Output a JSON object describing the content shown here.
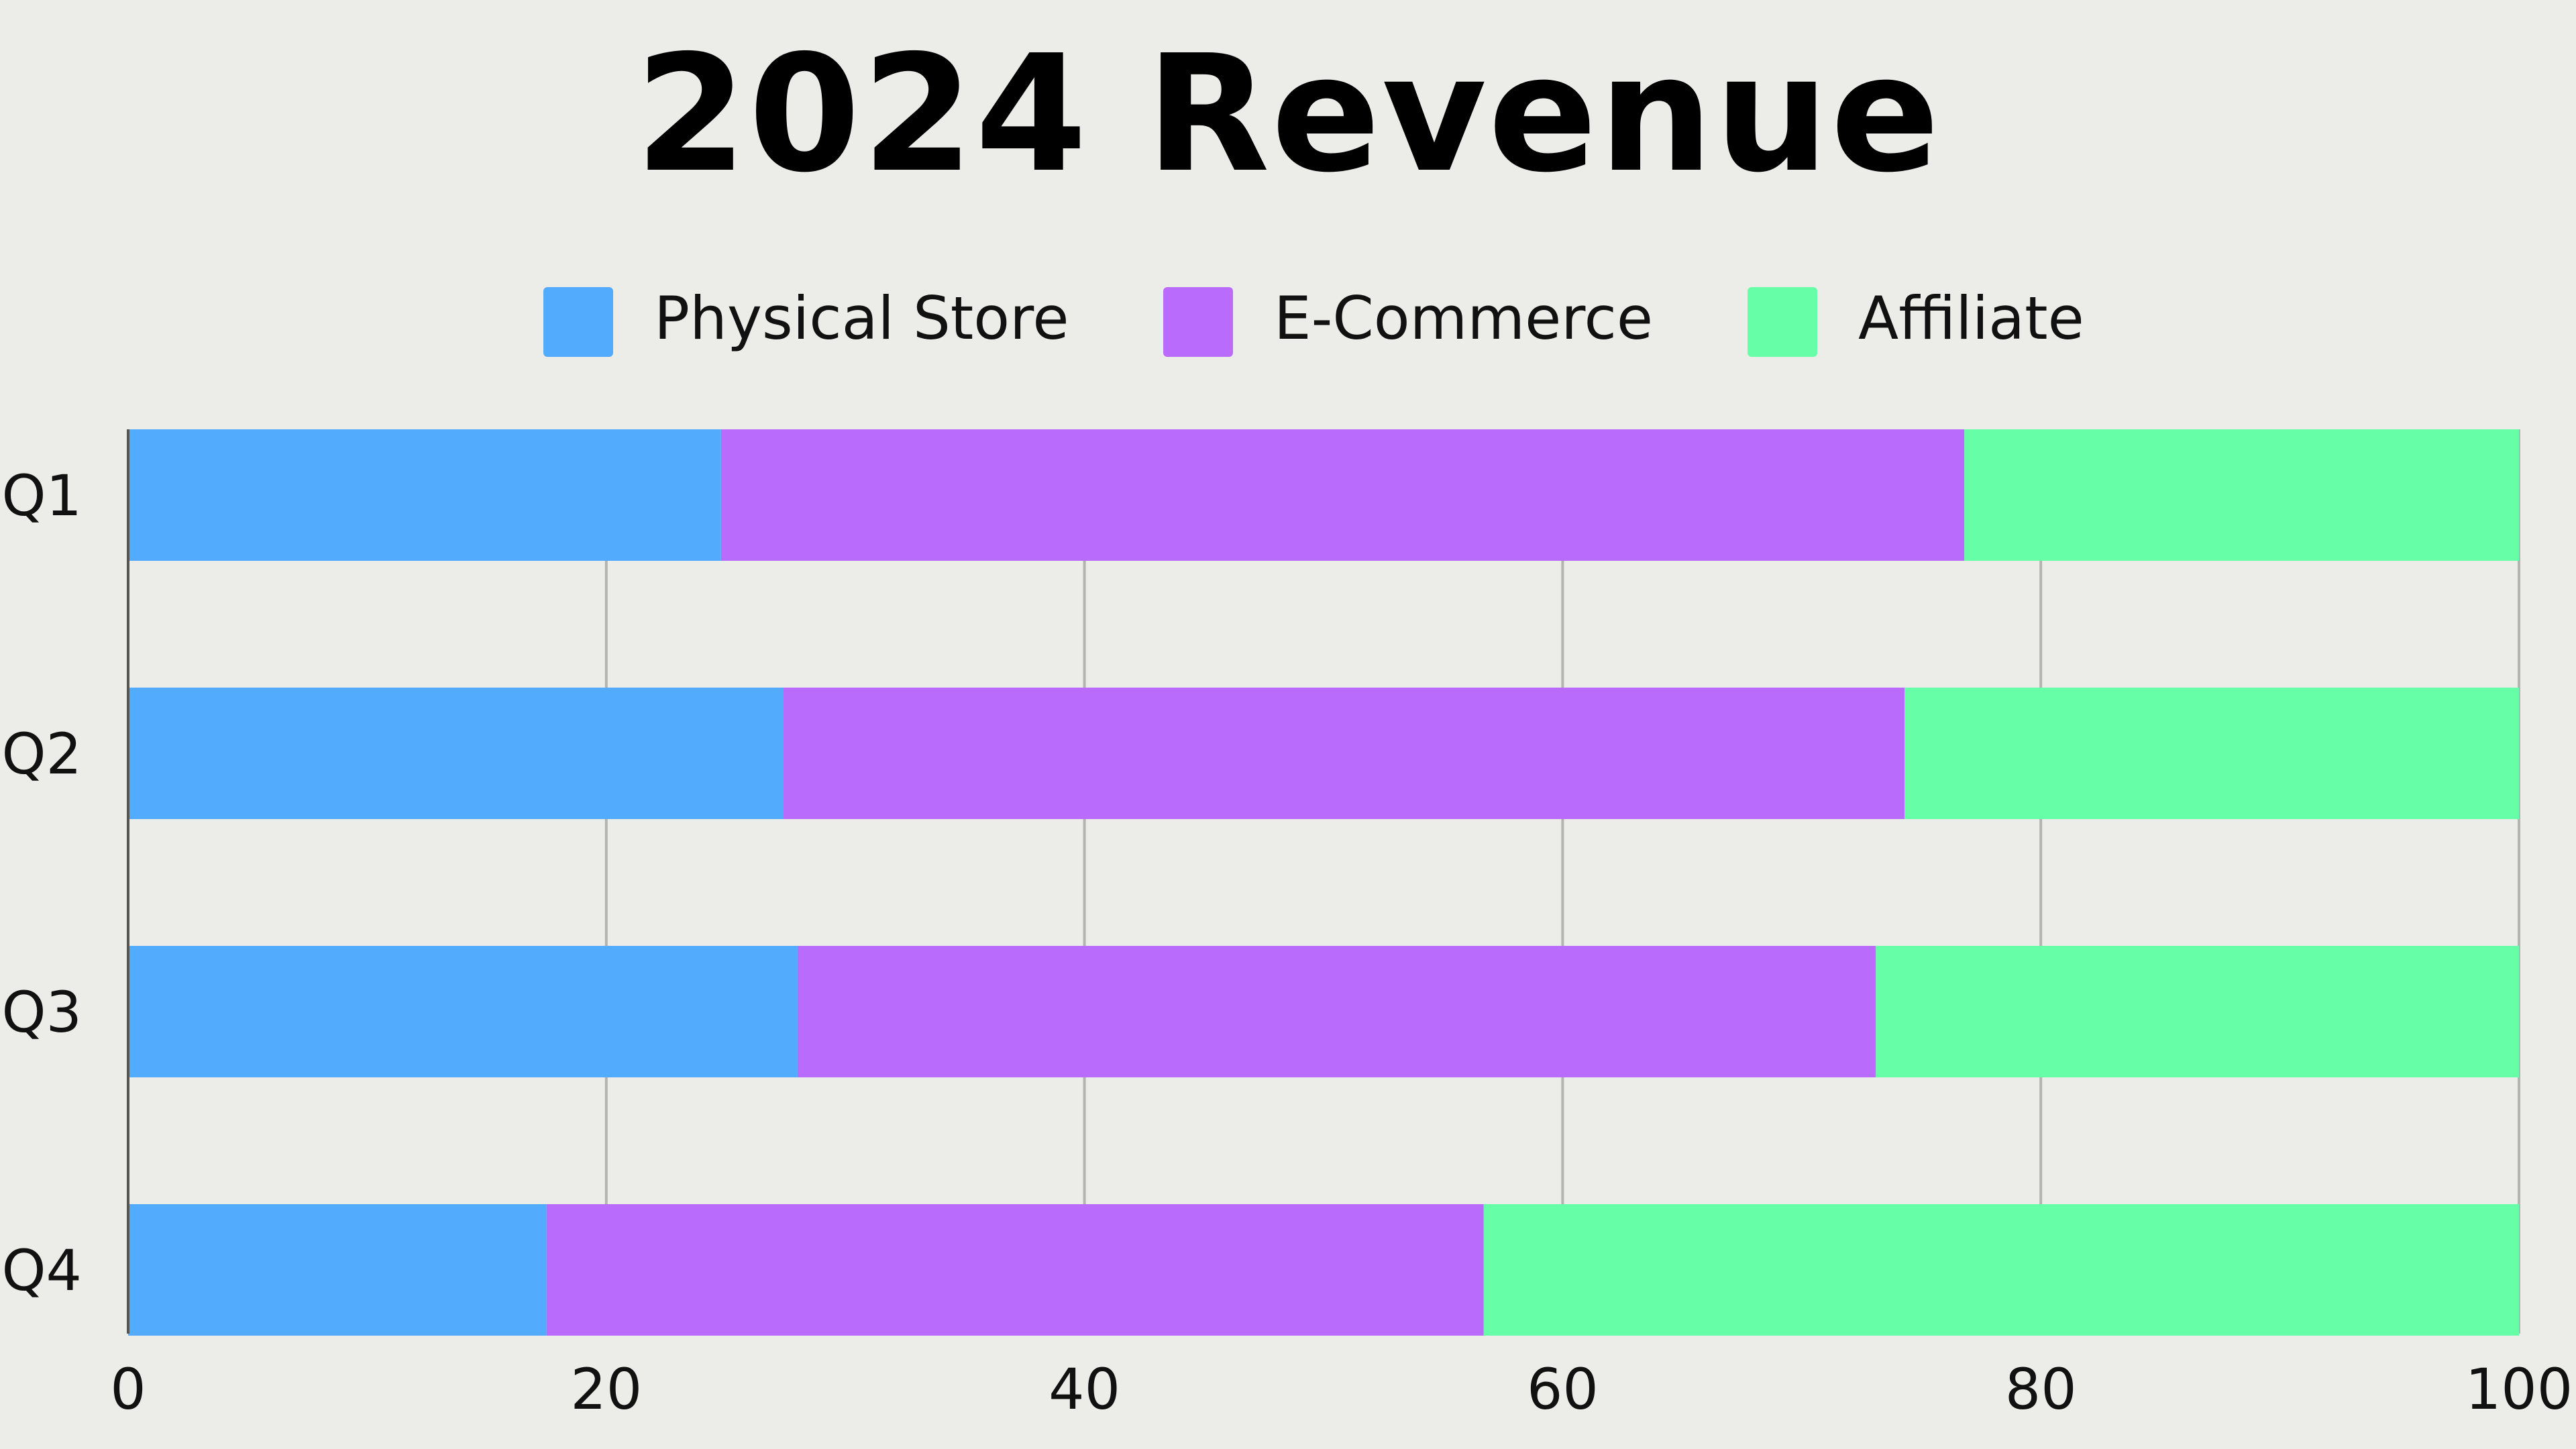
{
  "chart_data": {
    "type": "bar",
    "orientation": "horizontal",
    "stacked": true,
    "title": "2024 Revenue",
    "categories": [
      "Q1",
      "Q2",
      "Q3",
      "Q4"
    ],
    "series": [
      {
        "name": "Physical Store",
        "color": "#52abfc",
        "values": [
          24.8,
          27.4,
          28.0,
          17.5
        ]
      },
      {
        "name": "E-Commerce",
        "color": "#b96cfc",
        "values": [
          52.0,
          46.9,
          45.1,
          39.2
        ]
      },
      {
        "name": "Affiliate",
        "color": "#66ffa8",
        "values": [
          23.2,
          25.7,
          26.9,
          43.3
        ]
      }
    ],
    "xlim": [
      0,
      100
    ],
    "xticks": [
      "0",
      "20",
      "40",
      "60",
      "80",
      "100"
    ],
    "grid": true,
    "legend_position": "top"
  }
}
